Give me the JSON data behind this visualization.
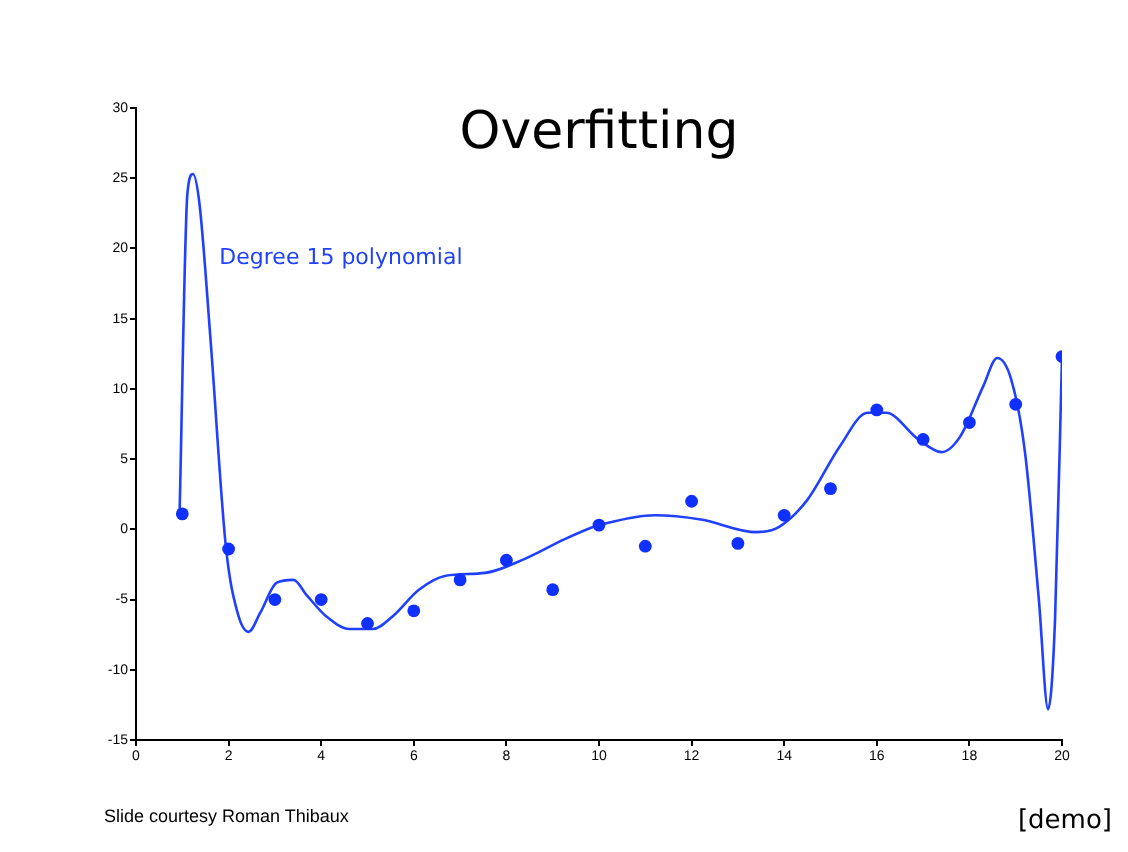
{
  "chart_data": {
    "type": "scatter",
    "title": "Overfitting",
    "xlim": [
      0,
      20
    ],
    "xticks": [
      0,
      2,
      4,
      6,
      8,
      10,
      12,
      14,
      16,
      18,
      20
    ],
    "ylim": [
      -15,
      30
    ],
    "yticks": [
      -15,
      -10,
      -5,
      0,
      5,
      10,
      15,
      20,
      25,
      30
    ],
    "grid": false,
    "legend": false,
    "marker": "circle",
    "series": [
      {
        "color": "#1030ff",
        "x": [
          1,
          2,
          3,
          4,
          5,
          6,
          7,
          8,
          9,
          10,
          11,
          12,
          13,
          14,
          15,
          16,
          17,
          18,
          19,
          20
        ],
        "values": [
          1.1,
          -1.4,
          -5,
          -5,
          -6.7,
          -5.8,
          -3.6,
          -2.2,
          -4.3,
          0.3,
          -1.2,
          2,
          -1,
          1,
          2.9,
          8.5,
          6.4,
          7.6,
          8.9,
          12.3
        ]
      },
      {
        "type": "line",
        "name": "Degree 15 polynomial",
        "color": "#2040ff",
        "marker": "none",
        "line_style": "solid",
        "x": [
          0.94,
          1.11,
          1.23,
          1.37,
          1.61,
          1.94,
          2.19,
          2.43,
          2.69,
          3.04,
          3.4,
          3.69,
          4.11,
          4.61,
          5.11,
          5.54,
          6.11,
          6.69,
          7.54,
          8.4,
          9.26,
          9.9,
          10,
          11.2,
          12.2,
          13.4,
          13.9,
          14.5,
          15.2,
          15.8,
          16.2,
          16.9,
          17.4,
          17.8,
          18.3,
          18.6,
          18.9,
          19.2,
          19.5,
          19.7,
          19.85,
          20
        ],
        "values": [
          1.0,
          23.9,
          25.3,
          23.2,
          13.5,
          -1.2,
          -5.9,
          -7.3,
          -5.9,
          -3.8,
          -3.6,
          -4.7,
          -6.2,
          -7.1,
          -7.1,
          -6.2,
          -4.3,
          -3.3,
          -3.1,
          -2.1,
          -0.7,
          0.2,
          0.3,
          1.0,
          0.7,
          -0.2,
          0.2,
          2.1,
          5.9,
          8.3,
          8.3,
          6.4,
          5.5,
          6.6,
          10.2,
          12.2,
          10.7,
          5.5,
          -5,
          -12.8,
          -6.4,
          12.3
        ]
      }
    ],
    "annotations": [
      "Slide courtesy Roman Thibaux",
      "[demo]"
    ]
  }
}
